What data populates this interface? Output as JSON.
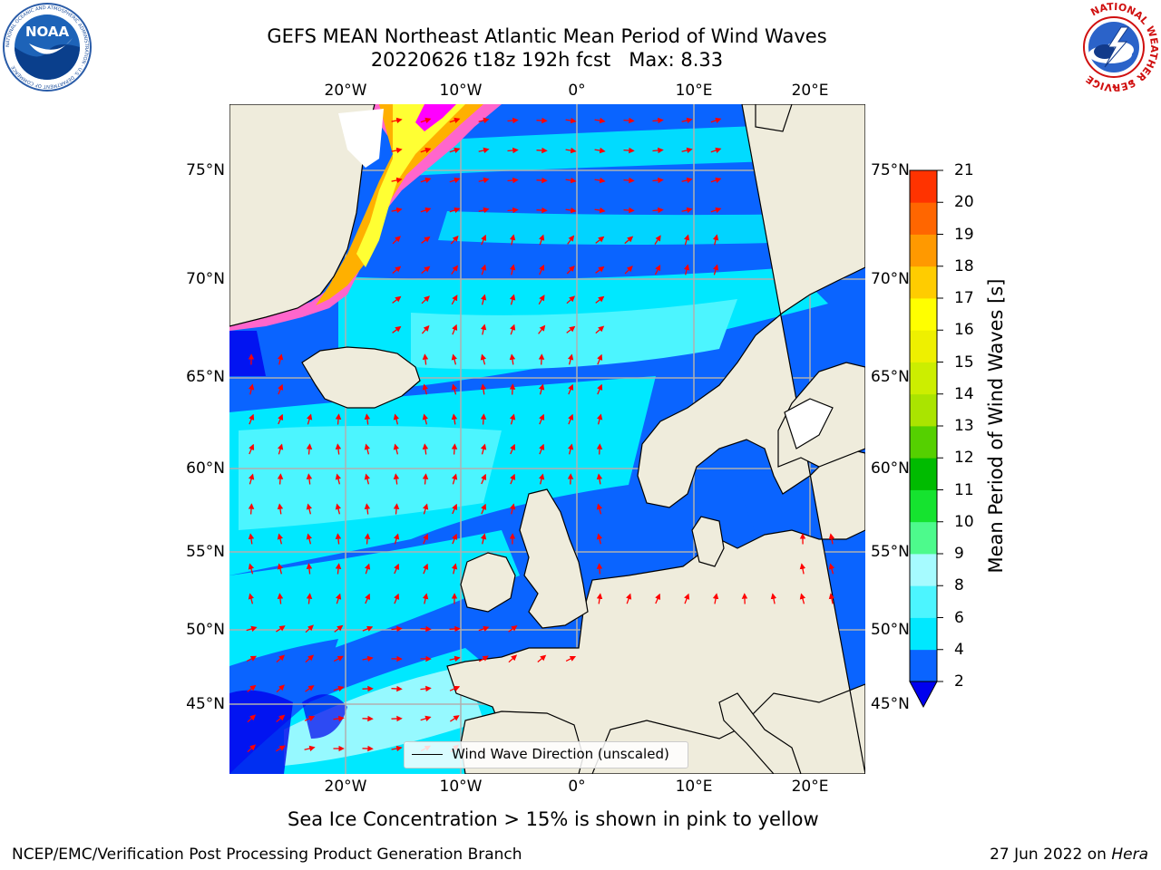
{
  "header": {
    "title_line1": "GEFS MEAN Northeast Atlantic Mean Period of Wind Waves",
    "title_line2": "20220626 t18z 192h fcst   Max: 8.33"
  },
  "logos": {
    "noaa_text": "NOAA",
    "noaa_ring_text": "NATIONAL OCEANIC AND ATMOSPHERIC ADMINISTRATION · U.S. DEPARTMENT OF COMMERCE",
    "nws_ring_text": "NATIONAL WEATHER SERVICE"
  },
  "map": {
    "lon_labels": [
      "20°W",
      "10°W",
      "0°",
      "10°E",
      "20°E"
    ],
    "lat_labels": [
      "75°N",
      "70°N",
      "65°N",
      "60°N",
      "55°N",
      "50°N",
      "45°N"
    ],
    "lon_range": [
      -30,
      25
    ],
    "lat_range": [
      41,
      78
    ],
    "grid": true,
    "land_color": "#efecdc",
    "ice_colors": [
      "#ff00ff",
      "#ff66cc",
      "#ffb000",
      "#ffff33"
    ],
    "arrow_color": "#ff0000"
  },
  "colorbar": {
    "label": "Mean Period of Wind Waves [s]",
    "ticks": [
      "2",
      "4",
      "6",
      "8",
      "9",
      "10",
      "11",
      "12",
      "13",
      "14",
      "15",
      "16",
      "17",
      "18",
      "19",
      "20",
      "21"
    ],
    "colors": [
      "#0a64ff",
      "#00e8ff",
      "#4cf5ff",
      "#a6fbff",
      "#4dfa8c",
      "#15e32f",
      "#00bb00",
      "#55d000",
      "#aae400",
      "#ccee00",
      "#eef000",
      "#ffff00",
      "#ffcc00",
      "#ff9900",
      "#ff6600",
      "#ff3300"
    ],
    "under_color": "#0000ee",
    "over_color": "#ff0000"
  },
  "legend": {
    "label": "Wind Wave Direction (unscaled)"
  },
  "subtitle": "Sea Ice Concentration > 15% is shown in pink to yellow",
  "footer": {
    "left": "NCEP/EMC/Verification Post Processing Product Generation Branch",
    "date": "27 Jun 2022 on",
    "machine": "Hera"
  }
}
